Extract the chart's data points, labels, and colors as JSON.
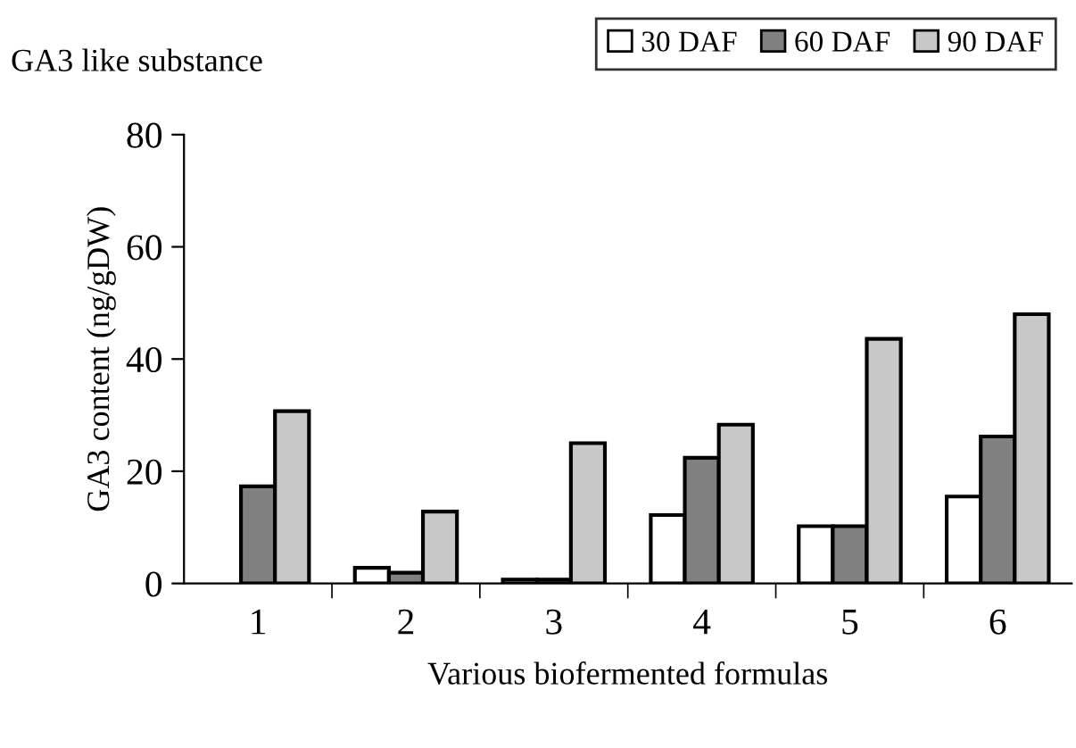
{
  "chart_data": {
    "type": "bar",
    "title": "GA3 like substance",
    "xlabel": "Various biofermented formulas",
    "ylabel": "GA3 content (ng/gDW)",
    "categories": [
      "1",
      "2",
      "3",
      "4",
      "5",
      "6"
    ],
    "series": [
      {
        "name": "30 DAF",
        "color": "#ffffff",
        "values": [
          null,
          2.8,
          0.7,
          12.2,
          10.2,
          15.5
        ]
      },
      {
        "name": "60 DAF",
        "color": "#808080",
        "values": [
          17.3,
          1.9,
          0.7,
          22.4,
          10.2,
          26.2
        ]
      },
      {
        "name": "90 DAF",
        "color": "#c8c8c8",
        "values": [
          30.7,
          12.8,
          25,
          28.3,
          43.6,
          48
        ]
      }
    ],
    "ylim": [
      0,
      80
    ],
    "yticks": [
      0,
      20,
      40,
      60,
      80
    ],
    "grid": false,
    "legend": "top right"
  }
}
